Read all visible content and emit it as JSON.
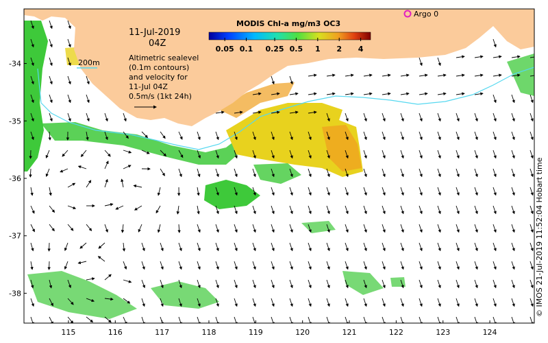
{
  "map": {
    "date_line": "11-Jul-2019",
    "time_line": "04Z",
    "legend_contour_label": "200m",
    "description_lines": [
      "Altimetric sealevel",
      "(0.1m contours)",
      "and velocity for",
      "11-Jul 04Z",
      "0.5m/s (1kt 24h)"
    ],
    "argo_label": "Argo 0",
    "side_credit": "© IMOS 21-Jul-2019 11:52:04 Hobart time",
    "colors": {
      "land": "#FBCB9B",
      "shelf_contour": "#55D8F0",
      "argo_marker": "#E020C0",
      "chl_green": "#3EC93A",
      "chl_yellow": "#E8D21E",
      "chl_orange": "#F0A020"
    }
  },
  "colorbar": {
    "title": "MODIS Chl-a mg/m3 OC3",
    "ticks": [
      {
        "label": "0.05",
        "value": 0.05
      },
      {
        "label": "0.1",
        "value": 0.1
      },
      {
        "label": "0.25",
        "value": 0.25
      },
      {
        "label": "0.5",
        "value": 0.5
      },
      {
        "label": "1",
        "value": 1
      },
      {
        "label": "2",
        "value": 2
      },
      {
        "label": "4",
        "value": 4
      }
    ],
    "range": [
      0.03,
      5.5
    ],
    "scale": "log"
  },
  "axes": {
    "lon_ticks": [
      "115",
      "116",
      "117",
      "118",
      "119",
      "120",
      "121",
      "122",
      "123",
      "124"
    ],
    "lat_ticks": [
      "-34",
      "-35",
      "-36",
      "-37",
      "-38"
    ],
    "lon_range": [
      114.05,
      124.95
    ],
    "lat_range": [
      -38.52,
      -33.05
    ]
  }
}
